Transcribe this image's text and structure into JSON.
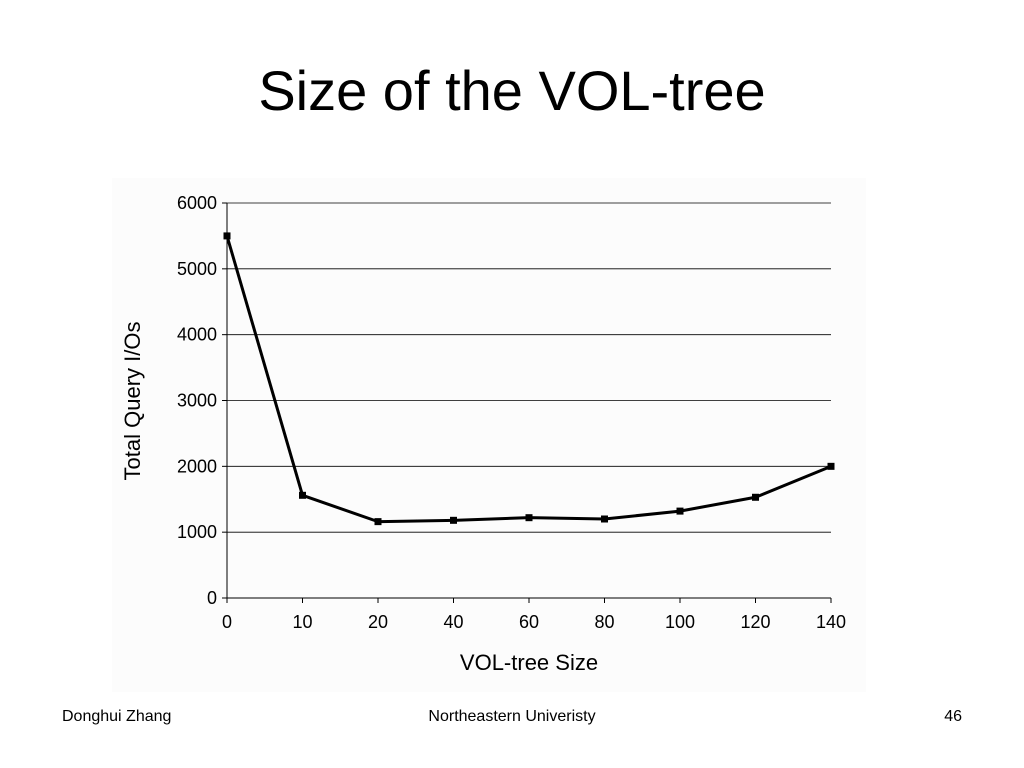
{
  "slide": {
    "title": "Size of the VOL-tree",
    "footer_left": "Donghui Zhang",
    "footer_center": "Northeastern Univeristy",
    "footer_right": "46"
  },
  "chart_data": {
    "type": "line",
    "title": "",
    "xlabel": "VOL-tree Size",
    "ylabel": "Total Query I/Os",
    "categories": [
      "0",
      "10",
      "20",
      "40",
      "60",
      "80",
      "100",
      "120",
      "140"
    ],
    "series": [
      {
        "values": [
          5500,
          1560,
          1160,
          1180,
          1220,
          1200,
          1320,
          1530,
          2000
        ]
      }
    ],
    "yticks": [
      0,
      1000,
      2000,
      3000,
      4000,
      5000,
      6000
    ],
    "ylim": [
      0,
      6000
    ],
    "grid": "horizontal",
    "marker": "square",
    "line_color": "#000000",
    "grid_color": "#000000"
  }
}
